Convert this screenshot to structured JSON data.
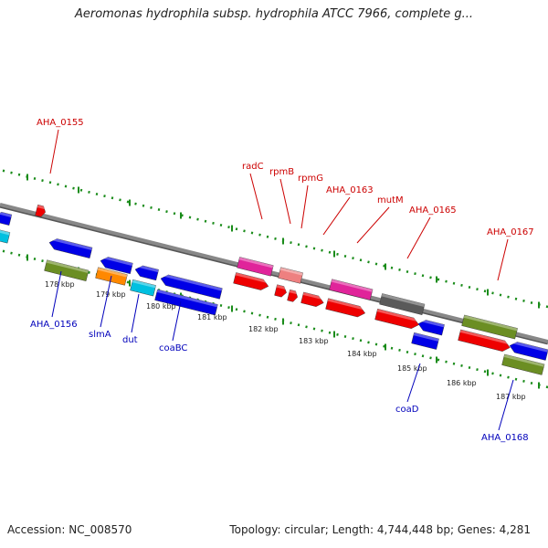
{
  "header": {
    "title": "Aeromonas hydrophila subsp. hydrophila ATCC 7966, complete g..."
  },
  "footer": {
    "accession": "Accession: NC_008570",
    "summary": "Topology: circular; Length: 4,744,448 bp; Genes: 4,281"
  },
  "colors": {
    "label_top": "#cc0000",
    "label_bottom": "#0000bb",
    "backbone": "#888888",
    "tick": "#1a8c1a"
  },
  "scale": {
    "ticks": [
      "178 kbp",
      "179 kbp",
      "180 kbp",
      "181 kbp",
      "182 kbp",
      "183 kbp",
      "184 kbp",
      "185 kbp",
      "186 kbp",
      "187 kbp"
    ]
  },
  "genes_top_labels": [
    "AHA_0155",
    "radC",
    "rpmB",
    "rpmG",
    "AHA_0163",
    "mutM",
    "AHA_0165",
    "AHA_0167"
  ],
  "genes_bottom_labels": [
    "AHA_0156",
    "slmA",
    "dut",
    "coaBC",
    "coaD",
    "AHA_0168"
  ]
}
